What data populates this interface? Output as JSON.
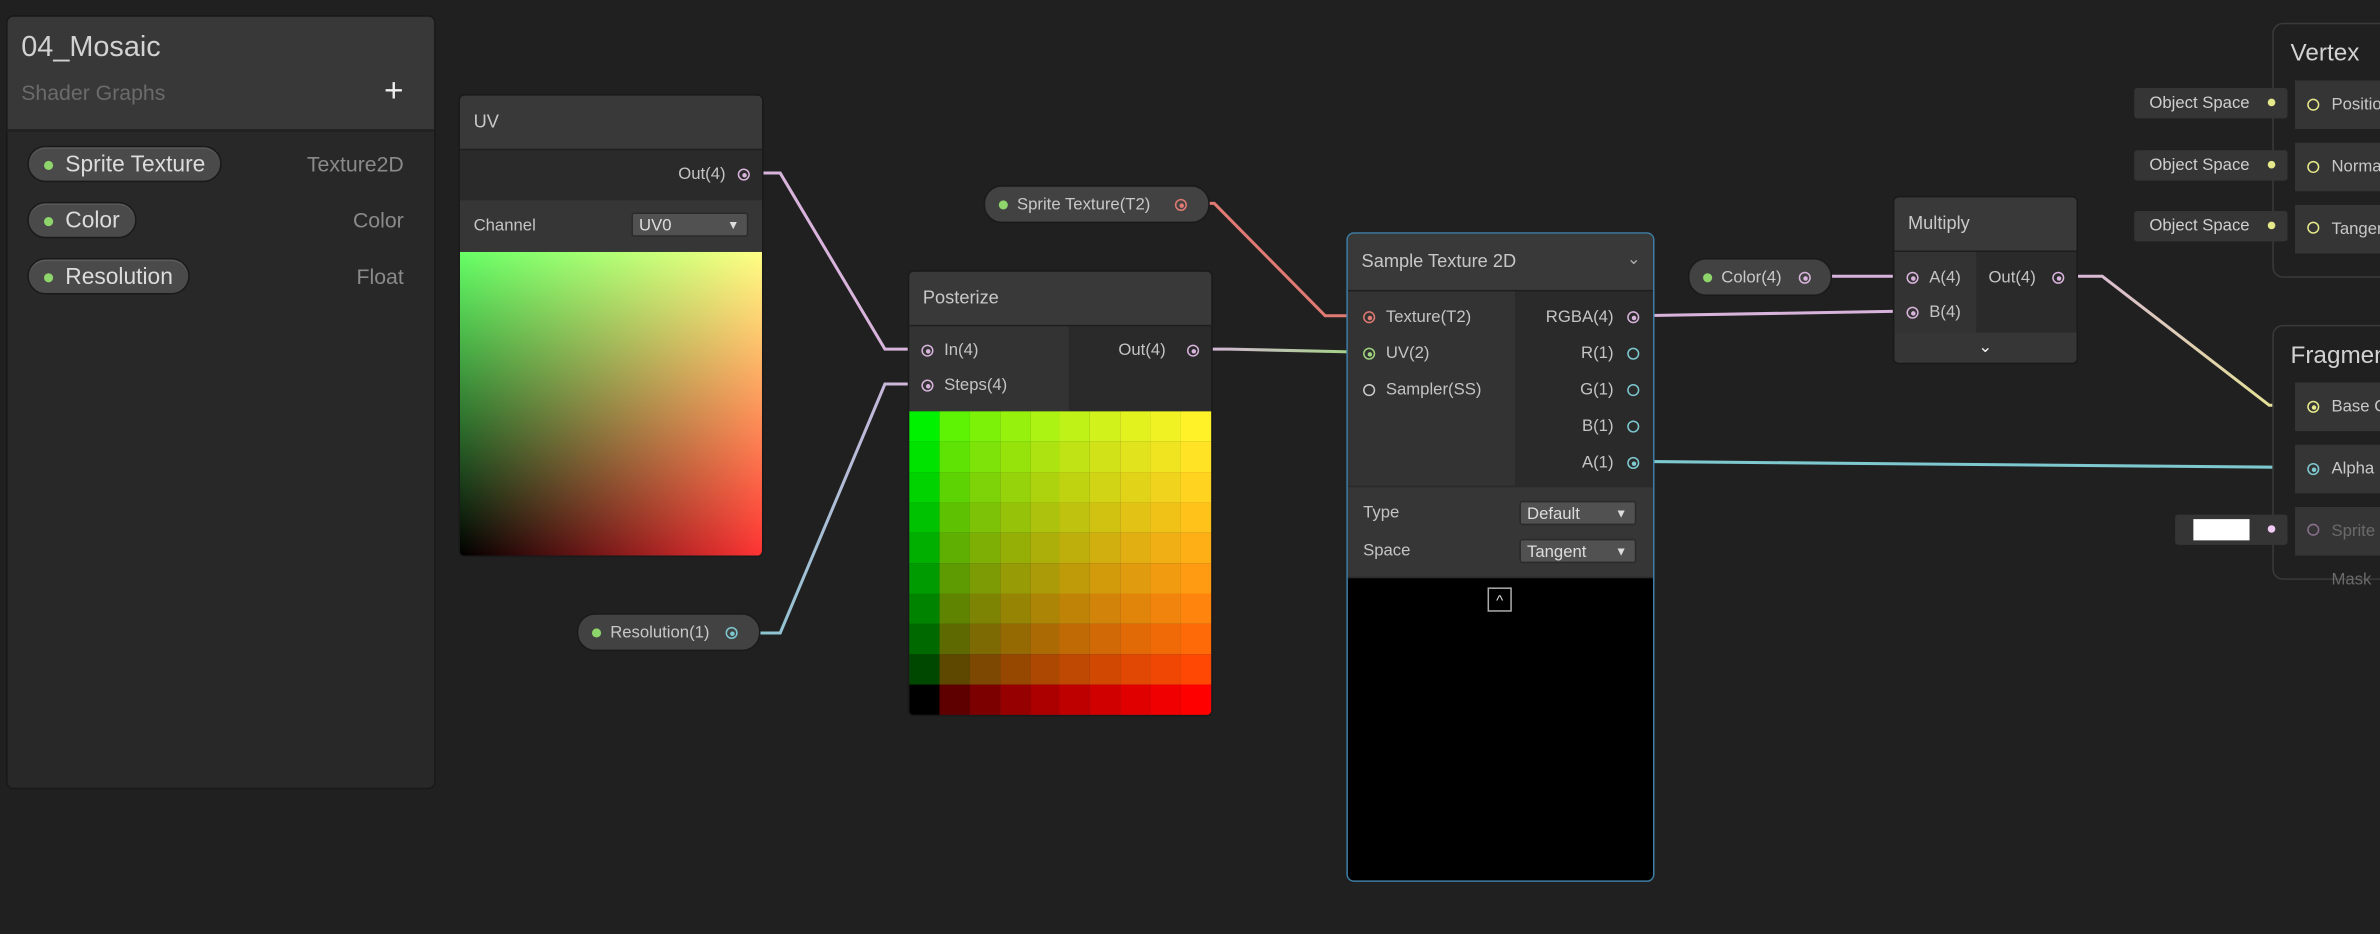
{
  "blackboard": {
    "title": "04_Mosaic",
    "subtitle": "Shader Graphs",
    "add_icon": "plus-icon",
    "properties": [
      {
        "name": "Sprite Texture",
        "type": "Texture2D"
      },
      {
        "name": "Color",
        "type": "Color"
      },
      {
        "name": "Resolution",
        "type": "Float"
      }
    ]
  },
  "uv_node": {
    "title": "UV",
    "out": "Out(4)",
    "channel_label": "Channel",
    "channel_value": "UV0"
  },
  "posterize_node": {
    "title": "Posterize",
    "in": "In(4)",
    "steps": "Steps(4)",
    "out": "Out(4)"
  },
  "property_nodes": {
    "sprite_texture": "Sprite Texture(T2)",
    "resolution": "Resolution(1)",
    "color": "Color(4)"
  },
  "sample_node": {
    "title": "Sample Texture 2D",
    "inputs": [
      "Texture(T2)",
      "UV(2)",
      "Sampler(SS)"
    ],
    "outputs": [
      "RGBA(4)",
      "R(1)",
      "G(1)",
      "B(1)",
      "A(1)"
    ],
    "type_label": "Type",
    "type_value": "Default",
    "space_label": "Space",
    "space_value": "Tangent"
  },
  "multiply_node": {
    "title": "Multiply",
    "a": "A(4)",
    "b": "B(4)",
    "out": "Out(4)"
  },
  "vertex": {
    "title": "Vertex",
    "blocks": [
      "Position",
      "Normal",
      "Tangent"
    ],
    "default": "Object Space"
  },
  "fragment": {
    "title": "Fragment",
    "blocks": [
      "Base Color",
      "Alpha",
      "Sprite Mask"
    ]
  },
  "colors": {
    "background": "#202020",
    "vector4": "#d8b4dc",
    "vector2": "#9fd47f",
    "texture": "#e07a73",
    "float": "#7ec8d0",
    "vector3": "#e6e98a",
    "selection": "#3d7ea6"
  }
}
